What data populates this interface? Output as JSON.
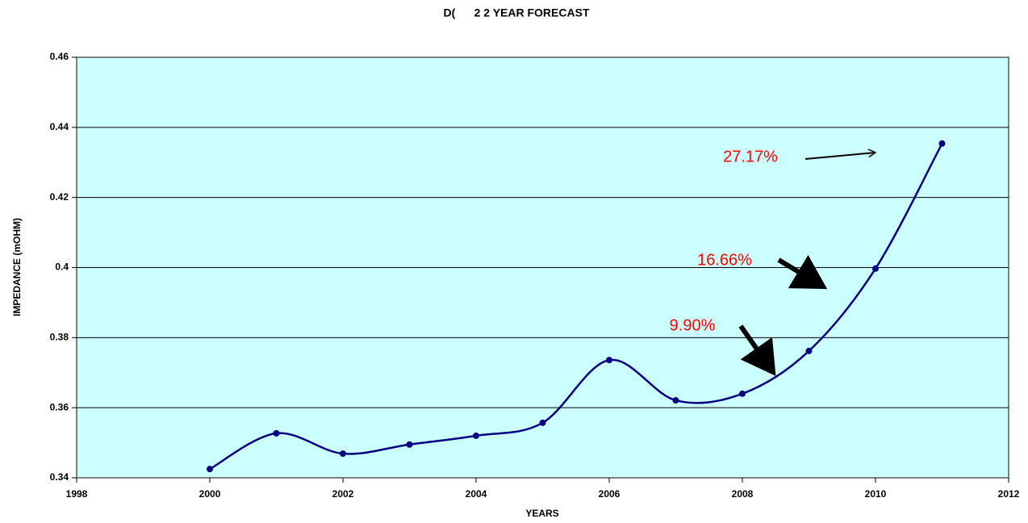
{
  "chart_data": {
    "type": "line",
    "title": "D(      2 2 YEAR FORECAST",
    "xlabel": "YEARS",
    "ylabel": "IMPEDANCE (mOHM)",
    "series": [
      {
        "color": "#000080",
        "x": [
          2000,
          2001,
          2002,
          2003,
          2004,
          2005,
          2006,
          2007,
          2008,
          2009,
          2010,
          2011
        ],
        "values": [
          0.3425,
          0.3527,
          0.3469,
          0.3495,
          0.352,
          0.3557,
          0.3736,
          0.3621,
          0.364,
          0.3762,
          0.3997,
          0.4354
        ]
      }
    ],
    "xlim": [
      1998,
      2012
    ],
    "xticks": [
      1998,
      2000,
      2002,
      2004,
      2006,
      2008,
      2010,
      2012
    ],
    "ylim": [
      0.34,
      0.46
    ],
    "yticks": [
      0.34,
      0.36,
      0.38,
      0.4,
      0.42,
      0.44,
      0.46
    ],
    "grid": true,
    "background": "#ccffff",
    "annotations": [
      "27.17%",
      "16.66%",
      "9.90%"
    ]
  }
}
